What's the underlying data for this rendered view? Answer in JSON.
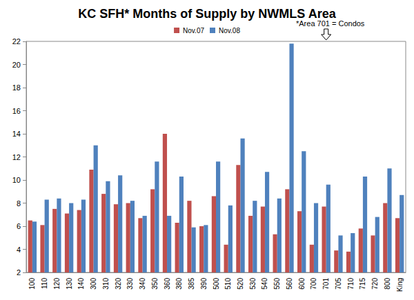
{
  "chart_data": {
    "type": "bar",
    "title": "KC SFH* Months of Supply by NWMLS Area",
    "categories": [
      "100",
      "110",
      "120",
      "130",
      "140",
      "300",
      "310",
      "320",
      "330",
      "340",
      "350",
      "360",
      "380",
      "385",
      "390",
      "500",
      "510",
      "520",
      "530",
      "540",
      "550",
      "560",
      "600",
      "700",
      "701",
      "705",
      "710",
      "715",
      "720",
      "800",
      "King"
    ],
    "series": [
      {
        "name": "Nov.07",
        "color": "#c0504d",
        "values": [
          6.5,
          6.1,
          7.5,
          7.1,
          7.4,
          10.9,
          8.8,
          7.9,
          8.0,
          6.7,
          9.2,
          14.0,
          6.3,
          8.2,
          6.0,
          8.6,
          4.4,
          11.3,
          6.9,
          7.7,
          5.3,
          9.2,
          7.3,
          4.4,
          7.7,
          3.9,
          3.8,
          5.8,
          5.2,
          8.0,
          6.7
        ]
      },
      {
        "name": "Nov.08",
        "color": "#4f81bd",
        "values": [
          6.4,
          8.3,
          8.4,
          8.0,
          8.3,
          13.0,
          9.9,
          10.4,
          8.2,
          6.9,
          11.6,
          6.9,
          10.3,
          5.9,
          6.1,
          11.6,
          7.8,
          13.6,
          8.2,
          10.7,
          8.4,
          21.8,
          12.5,
          8.0,
          9.6,
          5.2,
          5.4,
          10.3,
          6.8,
          11.0,
          8.7
        ]
      }
    ],
    "ylim": [
      2,
      22
    ],
    "yticks": [
      2,
      4,
      6,
      8,
      10,
      12,
      14,
      16,
      18,
      20,
      22
    ],
    "grid": false,
    "legend": "top",
    "annotation": {
      "text": "*Area 701 = Condos",
      "category": "701"
    }
  }
}
